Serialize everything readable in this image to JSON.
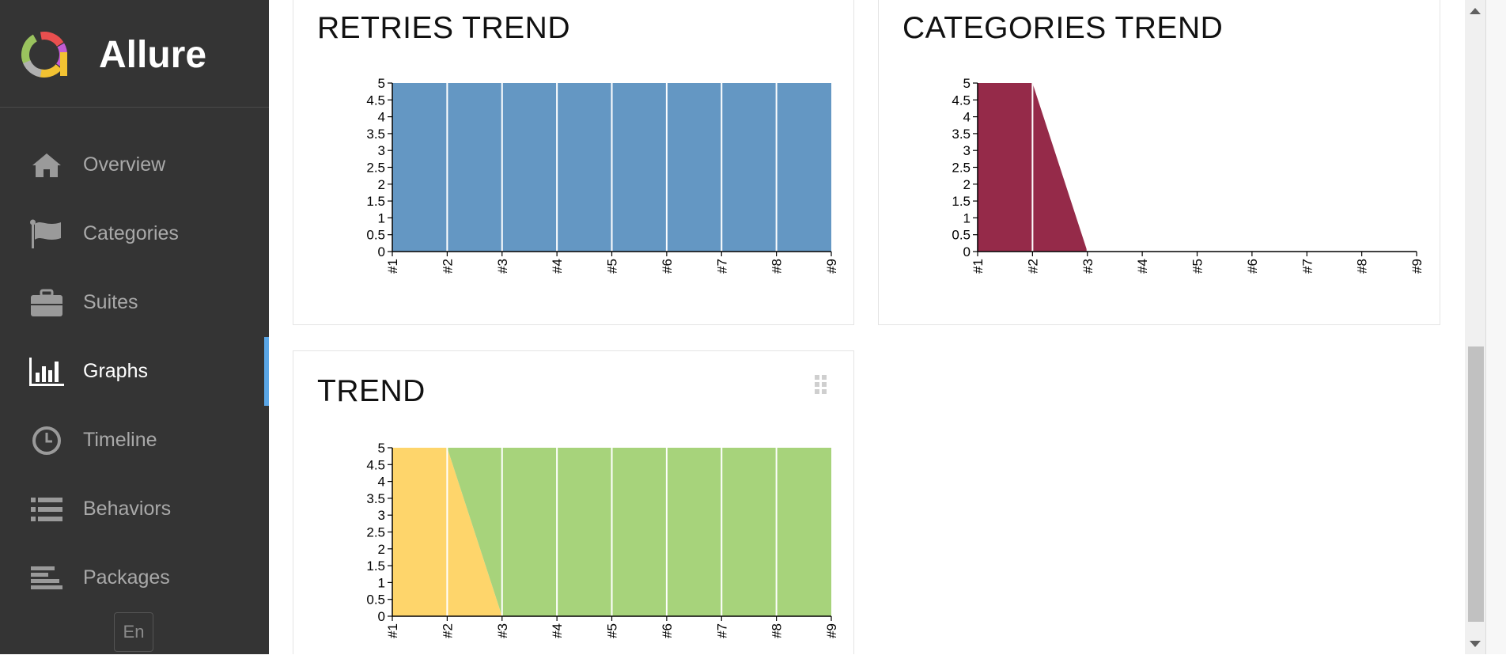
{
  "app": {
    "name": "Allure"
  },
  "sidebar": {
    "items": [
      {
        "label": "Overview",
        "icon": "home-icon",
        "active": false
      },
      {
        "label": "Categories",
        "icon": "flag-icon",
        "active": false
      },
      {
        "label": "Suites",
        "icon": "briefcase-icon",
        "active": false
      },
      {
        "label": "Graphs",
        "icon": "bar-chart-icon",
        "active": true
      },
      {
        "label": "Timeline",
        "icon": "clock-icon",
        "active": false
      },
      {
        "label": "Behaviors",
        "icon": "list-icon",
        "active": false
      },
      {
        "label": "Packages",
        "icon": "align-left-icon",
        "active": false
      }
    ],
    "language": "En"
  },
  "colors": {
    "sidebar_bg": "#343434",
    "active_accent": "#5aa6e6",
    "retries": "#6497c3",
    "category": "#952a49",
    "trend_broken": "#fed56b",
    "trend_passed": "#a7d37b"
  },
  "widgets": {
    "retries_trend": {
      "title": "RETRIES TREND"
    },
    "categories_trend": {
      "title": "CATEGORIES TREND"
    },
    "trend": {
      "title": "TREND"
    }
  },
  "chart_data": [
    {
      "type": "area",
      "title": "RETRIES TREND",
      "x": [
        "#1",
        "#2",
        "#3",
        "#4",
        "#5",
        "#6",
        "#7",
        "#8",
        "#9"
      ],
      "y_ticks": [
        "0",
        "0.5",
        "1",
        "1.5",
        "2",
        "2.5",
        "3",
        "3.5",
        "4",
        "4.5",
        "5"
      ],
      "ylim": [
        0,
        5
      ],
      "series": [
        {
          "values": [
            5,
            5,
            5,
            5,
            5,
            5,
            5,
            5,
            5
          ],
          "color": "#6497c3"
        }
      ]
    },
    {
      "type": "area",
      "title": "CATEGORIES TREND",
      "x": [
        "#1",
        "#2",
        "#3",
        "#4",
        "#5",
        "#6",
        "#7",
        "#8",
        "#9"
      ],
      "y_ticks": [
        "0",
        "0.5",
        "1",
        "1.5",
        "2",
        "2.5",
        "3",
        "3.5",
        "4",
        "4.5",
        "5"
      ],
      "ylim": [
        0,
        5
      ],
      "series": [
        {
          "values": [
            5,
            5,
            0,
            0,
            0,
            0,
            0,
            0,
            0
          ],
          "color": "#952a49"
        }
      ]
    },
    {
      "type": "area",
      "title": "TREND",
      "stacked": true,
      "x": [
        "#1",
        "#2",
        "#3",
        "#4",
        "#5",
        "#6",
        "#7",
        "#8",
        "#9"
      ],
      "y_ticks": [
        "0",
        "0.5",
        "1",
        "1.5",
        "2",
        "2.5",
        "3",
        "3.5",
        "4",
        "4.5",
        "5"
      ],
      "ylim": [
        0,
        5
      ],
      "series": [
        {
          "values": [
            5,
            5,
            0,
            0,
            0,
            0,
            0,
            0,
            0
          ],
          "color": "#fed56b"
        },
        {
          "values": [
            0,
            0,
            5,
            5,
            5,
            5,
            5,
            5,
            5
          ],
          "color": "#a7d37b"
        }
      ]
    }
  ]
}
